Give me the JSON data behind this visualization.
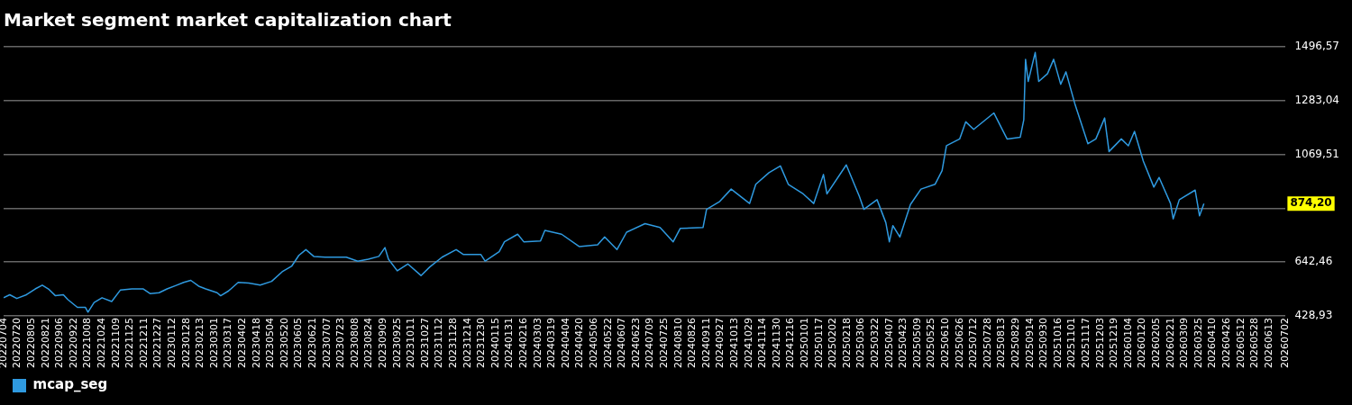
{
  "chart_data": {
    "type": "line",
    "title": "Market segment market capitalization chart",
    "x": [
      "2022-07-04",
      "2022-07-11",
      "2022-07-19",
      "2022-07-30",
      "2022-08-09",
      "2022-08-17",
      "2022-08-24",
      "2022-09-01",
      "2022-09-10",
      "2022-09-15",
      "2022-09-26",
      "2022-10-05",
      "2022-10-08",
      "2022-10-15",
      "2022-10-24",
      "2022-11-04",
      "2022-11-14",
      "2022-11-27",
      "2022-12-10",
      "2022-12-18",
      "2022-12-28",
      "2023-01-06",
      "2023-01-17",
      "2023-01-25",
      "2023-02-02",
      "2023-02-11",
      "2023-02-19",
      "2023-03-04",
      "2023-03-08",
      "2023-03-17",
      "2023-03-28",
      "2023-04-09",
      "2023-04-22",
      "2023-05-05",
      "2023-05-17",
      "2023-05-28",
      "2023-06-05",
      "2023-06-13",
      "2023-06-22",
      "2023-07-05",
      "2023-07-17",
      "2023-07-29",
      "2023-08-11",
      "2023-08-23",
      "2023-09-04",
      "2023-09-11",
      "2023-09-15",
      "2023-09-25",
      "2023-10-07",
      "2023-10-22",
      "2023-11-01",
      "2023-11-15",
      "2023-12-01",
      "2023-12-09",
      "2023-12-29",
      "2024-01-03",
      "2024-01-19",
      "2024-01-25",
      "2024-02-09",
      "2024-02-16",
      "2024-03-06",
      "2024-03-11",
      "2024-03-30",
      "2024-04-19",
      "2024-05-10",
      "2024-05-18",
      "2024-06-01",
      "2024-06-12",
      "2024-07-03",
      "2024-07-20",
      "2024-08-04",
      "2024-08-12",
      "2024-09-07",
      "2024-09-11",
      "2024-09-26",
      "2024-10-09",
      "2024-10-30",
      "2024-11-06",
      "2024-11-21",
      "2024-12-04",
      "2024-12-13",
      "2024-12-30",
      "2025-01-11",
      "2025-01-22",
      "2025-01-26",
      "2025-02-17",
      "2025-03-04",
      "2025-03-09",
      "2025-03-24",
      "2025-04-03",
      "2025-04-07",
      "2025-04-11",
      "2025-04-19",
      "2025-05-01",
      "2025-05-13",
      "2025-05-29",
      "2025-06-06",
      "2025-06-11",
      "2025-06-26",
      "2025-07-03",
      "2025-07-12",
      "2025-08-04",
      "2025-08-19",
      "2025-09-03",
      "2025-09-07",
      "2025-09-09",
      "2025-09-12",
      "2025-09-20",
      "2025-09-24",
      "2025-10-04",
      "2025-10-11",
      "2025-10-19",
      "2025-10-25",
      "2025-11-04",
      "2025-11-19",
      "2025-11-28",
      "2025-12-08",
      "2025-12-13",
      "2025-12-27",
      "2026-01-04",
      "2026-01-11",
      "2026-01-21",
      "2026-02-02",
      "2026-02-08",
      "2026-02-21",
      "2026-02-24",
      "2026-03-03",
      "2026-03-21",
      "2026-03-26",
      "2026-03-31"
    ],
    "series": [
      {
        "name": "mcap_seg",
        "color": "#2f9ae0",
        "values": [
          501,
          513,
          498,
          513,
          536,
          551,
          536,
          509,
          513,
          494,
          463,
          463,
          444,
          482,
          501,
          486,
          532,
          536,
          536,
          517,
          521,
          536,
          551,
          562,
          570,
          547,
          536,
          521,
          509,
          528,
          562,
          559,
          551,
          566,
          604,
          627,
          669,
          692,
          665,
          662,
          662,
          662,
          646,
          654,
          665,
          700,
          654,
          608,
          635,
          589,
          623,
          662,
          692,
          673,
          673,
          646,
          684,
          723,
          753,
          723,
          726,
          768,
          753,
          704,
          711,
          742,
          692,
          761,
          795,
          780,
          723,
          776,
          780,
          852,
          883,
          932,
          875,
          951,
          997,
          1024,
          951,
          913,
          875,
          990,
          913,
          1028,
          902,
          852,
          890,
          799,
          723,
          787,
          742,
          871,
          932,
          951,
          1005,
          1104,
          1131,
          1199,
          1169,
          1234,
          1131,
          1138,
          1207,
          1447,
          1359,
          1474,
          1359,
          1390,
          1447,
          1348,
          1397,
          1272,
          1112,
          1131,
          1214,
          1081,
          1131,
          1104,
          1161,
          1043,
          940,
          978,
          875,
          814,
          890,
          928,
          826,
          874.2
        ]
      }
    ],
    "xlim": [
      "2022-07-04",
      "2026-07-02"
    ],
    "xticks": [
      {
        "value": "2022-07-04",
        "label": "20220704"
      },
      {
        "value": "2022-07-20",
        "label": "20220720"
      },
      {
        "value": "2022-08-05",
        "label": "20220805"
      },
      {
        "value": "2022-08-21",
        "label": "20220821"
      },
      {
        "value": "2022-09-06",
        "label": "20220906"
      },
      {
        "value": "2022-09-22",
        "label": "20220922"
      },
      {
        "value": "2022-10-08",
        "label": "20221008"
      },
      {
        "value": "2022-10-24",
        "label": "20221024"
      },
      {
        "value": "2022-11-09",
        "label": "20221109"
      },
      {
        "value": "2022-11-25",
        "label": "20221125"
      },
      {
        "value": "2022-12-11",
        "label": "20221211"
      },
      {
        "value": "2022-12-27",
        "label": "20221227"
      },
      {
        "value": "2023-01-12",
        "label": "20230112"
      },
      {
        "value": "2023-01-28",
        "label": "20230128"
      },
      {
        "value": "2023-02-13",
        "label": "20230213"
      },
      {
        "value": "2023-03-01",
        "label": "20230301"
      },
      {
        "value": "2023-03-17",
        "label": "20230317"
      },
      {
        "value": "2023-04-02",
        "label": "20230402"
      },
      {
        "value": "2023-04-18",
        "label": "20230418"
      },
      {
        "value": "2023-05-04",
        "label": "20230504"
      },
      {
        "value": "2023-05-20",
        "label": "20230520"
      },
      {
        "value": "2023-06-05",
        "label": "20230605"
      },
      {
        "value": "2023-06-21",
        "label": "20230621"
      },
      {
        "value": "2023-07-07",
        "label": "20230707"
      },
      {
        "value": "2023-07-23",
        "label": "20230723"
      },
      {
        "value": "2023-08-08",
        "label": "20230808"
      },
      {
        "value": "2023-08-24",
        "label": "20230824"
      },
      {
        "value": "2023-09-09",
        "label": "20230909"
      },
      {
        "value": "2023-09-25",
        "label": "20230925"
      },
      {
        "value": "2023-10-11",
        "label": "20231011"
      },
      {
        "value": "2023-10-27",
        "label": "20231027"
      },
      {
        "value": "2023-11-12",
        "label": "20231112"
      },
      {
        "value": "2023-11-28",
        "label": "20231128"
      },
      {
        "value": "2023-12-14",
        "label": "20231214"
      },
      {
        "value": "2023-12-30",
        "label": "20231230"
      },
      {
        "value": "2024-01-15",
        "label": "20240115"
      },
      {
        "value": "2024-01-31",
        "label": "20240131"
      },
      {
        "value": "2024-02-16",
        "label": "20240216"
      },
      {
        "value": "2024-03-03",
        "label": "20240303"
      },
      {
        "value": "2024-03-19",
        "label": "20240319"
      },
      {
        "value": "2024-04-04",
        "label": "20240404"
      },
      {
        "value": "2024-04-20",
        "label": "20240420"
      },
      {
        "value": "2024-05-06",
        "label": "20240506"
      },
      {
        "value": "2024-05-22",
        "label": "20240522"
      },
      {
        "value": "2024-06-07",
        "label": "20240607"
      },
      {
        "value": "2024-06-23",
        "label": "20240623"
      },
      {
        "value": "2024-07-09",
        "label": "20240709"
      },
      {
        "value": "2024-07-25",
        "label": "20240725"
      },
      {
        "value": "2024-08-10",
        "label": "20240810"
      },
      {
        "value": "2024-08-26",
        "label": "20240826"
      },
      {
        "value": "2024-09-11",
        "label": "20240911"
      },
      {
        "value": "2024-09-27",
        "label": "20240927"
      },
      {
        "value": "2024-10-13",
        "label": "20241013"
      },
      {
        "value": "2024-10-29",
        "label": "20241029"
      },
      {
        "value": "2024-11-14",
        "label": "20241114"
      },
      {
        "value": "2024-11-30",
        "label": "20241130"
      },
      {
        "value": "2024-12-16",
        "label": "20241216"
      },
      {
        "value": "2025-01-01",
        "label": "20250101"
      },
      {
        "value": "2025-01-17",
        "label": "20250117"
      },
      {
        "value": "2025-02-02",
        "label": "20250202"
      },
      {
        "value": "2025-02-18",
        "label": "20250218"
      },
      {
        "value": "2025-03-06",
        "label": "20250306"
      },
      {
        "value": "2025-03-22",
        "label": "20250322"
      },
      {
        "value": "2025-04-07",
        "label": "20250407"
      },
      {
        "value": "2025-04-23",
        "label": "20250423"
      },
      {
        "value": "2025-05-09",
        "label": "20250509"
      },
      {
        "value": "2025-05-25",
        "label": "20250525"
      },
      {
        "value": "2025-06-10",
        "label": "20250610"
      },
      {
        "value": "2025-06-26",
        "label": "20250626"
      },
      {
        "value": "2025-07-12",
        "label": "20250712"
      },
      {
        "value": "2025-07-28",
        "label": "20250728"
      },
      {
        "value": "2025-08-13",
        "label": "20250813"
      },
      {
        "value": "2025-08-29",
        "label": "20250829"
      },
      {
        "value": "2025-09-14",
        "label": "20250914"
      },
      {
        "value": "2025-09-30",
        "label": "20250930"
      },
      {
        "value": "2025-10-16",
        "label": "20251016"
      },
      {
        "value": "2025-11-01",
        "label": "20251101"
      },
      {
        "value": "2025-11-17",
        "label": "20251117"
      },
      {
        "value": "2025-12-03",
        "label": "20251203"
      },
      {
        "value": "2025-12-19",
        "label": "20251219"
      },
      {
        "value": "2026-01-04",
        "label": "20260104"
      },
      {
        "value": "2026-01-20",
        "label": "20260120"
      },
      {
        "value": "2026-02-05",
        "label": "20260205"
      },
      {
        "value": "2026-02-21",
        "label": "20260221"
      },
      {
        "value": "2026-03-09",
        "label": "20260309"
      },
      {
        "value": "2026-03-25",
        "label": "20260325"
      },
      {
        "value": "2026-04-10",
        "label": "20260410"
      },
      {
        "value": "2026-04-26",
        "label": "20260426"
      },
      {
        "value": "2026-05-12",
        "label": "20260512"
      },
      {
        "value": "2026-05-28",
        "label": "20260528"
      },
      {
        "value": "2026-06-13",
        "label": "20260613"
      },
      {
        "value": "2026-07-02",
        "label": "20260702"
      }
    ],
    "ylim": [
      428.93,
      1496.57
    ],
    "yticks": [
      {
        "value": 428.93,
        "label": "428,93"
      },
      {
        "value": 642.46,
        "label": "642,46"
      },
      {
        "value": 855.99,
        "label": null
      },
      {
        "value": 1069.51,
        "label": "1069,51"
      },
      {
        "value": 1283.04,
        "label": "1283,04"
      },
      {
        "value": 1496.57,
        "label": "1496,57"
      }
    ],
    "grid": "y",
    "legend": "bottom left",
    "annotations": [
      "874,20"
    ]
  }
}
